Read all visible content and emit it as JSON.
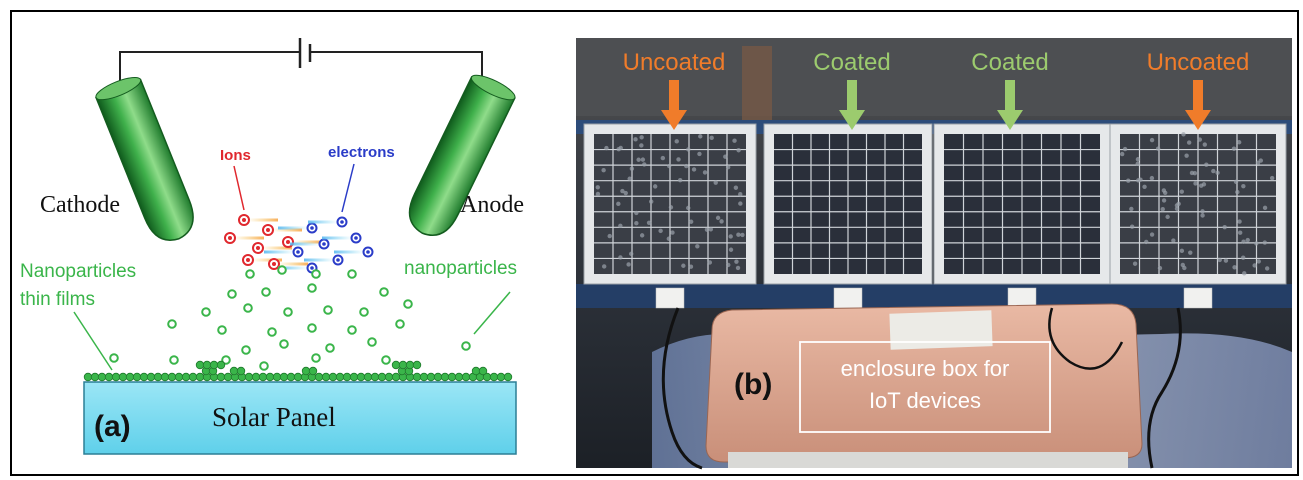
{
  "panel_a": {
    "label": "(a)",
    "cathode": "Cathode",
    "anode": "Anode",
    "ions": "Ions",
    "electrons": "electrons",
    "nano_left_line1": "Nanoparticles",
    "nano_left_line2": "thin films",
    "nano_right": "nanoparticles",
    "solar_panel": "Solar Panel"
  },
  "panel_b": {
    "label": "(b)",
    "panels": [
      {
        "label": "Uncoated",
        "color": "#f07c2a"
      },
      {
        "label": "Coated",
        "color": "#9ccb6e"
      },
      {
        "label": "Coated",
        "color": "#9ccb6e"
      },
      {
        "label": "Uncoated",
        "color": "#f07c2a"
      }
    ],
    "enclosure_line1": "enclosure box for",
    "enclosure_line2": "IoT devices"
  },
  "colors": {
    "electrode_green": "#2e9b3a",
    "nanoparticle_green": "#3ab54a",
    "ion_red": "#e0282e",
    "electron_blue": "#2a3cc8",
    "solar_cyan": "#7fdcf0",
    "label_green": "#3ab54a"
  }
}
